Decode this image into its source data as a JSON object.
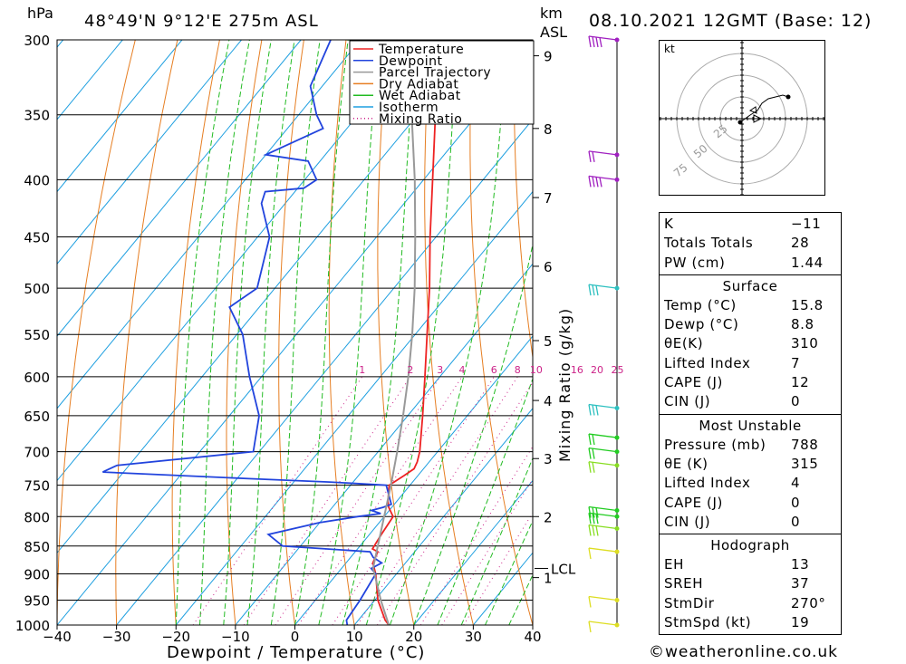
{
  "header": {
    "pressure_unit": "hPa",
    "location": "48°49'N  9°12'E  275m  ASL",
    "height_unit_line1": "km",
    "height_unit_line2": "ASL",
    "datetime": "08.10.2021  12GMT  (Base: 12)"
  },
  "chart_data": {
    "type": "line",
    "title": "48°49'N  9°12'E  275m  ASL",
    "xlabel": "Dewpoint / Temperature (°C)",
    "ylabel": "hPa",
    "right_axis_label": "Mixing Ratio (g/kg)",
    "xlim": [
      -40,
      40
    ],
    "ylim": [
      1000,
      300
    ],
    "x_ticks": [
      -40,
      -30,
      -20,
      -10,
      0,
      10,
      20,
      30,
      40
    ],
    "x_tick_labels": [
      "−40",
      "−30",
      "−20",
      "−10",
      "0",
      "10",
      "20",
      "30",
      "40"
    ],
    "pressure_levels": [
      300,
      350,
      400,
      450,
      500,
      550,
      600,
      650,
      700,
      750,
      800,
      850,
      900,
      950,
      1000
    ],
    "height_ticks": [
      {
        "km": 1,
        "p": 907
      },
      {
        "km": 2,
        "p": 800
      },
      {
        "km": 3,
        "p": 710
      },
      {
        "km": 4,
        "p": 630
      },
      {
        "km": 5,
        "p": 557
      },
      {
        "km": 6,
        "p": 478
      },
      {
        "km": 7,
        "p": 415
      },
      {
        "km": 8,
        "p": 360
      },
      {
        "km": 9,
        "p": 310
      }
    ],
    "lcl": {
      "label": "LCL",
      "p": 890
    },
    "mixing_ratio_labels": [
      "1",
      "2",
      "3",
      "4",
      "6",
      "8",
      "10",
      "16",
      "20",
      "25"
    ],
    "legend": [
      "Temperature",
      "Dewpoint",
      "Parcel Trajectory",
      "Dry Adiabat",
      "Wet Adiabat",
      "Isotherm",
      "Mixing Ratio"
    ],
    "legend_position": "top-right",
    "series": [
      {
        "name": "Temperature",
        "color": "#ee2222",
        "points": [
          [
            1000,
            15.8
          ],
          [
            990,
            14.5
          ],
          [
            950,
            10.5
          ],
          [
            900,
            6.5
          ],
          [
            880,
            4.5
          ],
          [
            860,
            3.8
          ],
          [
            855,
            2.5
          ],
          [
            830,
            2.0
          ],
          [
            800,
            1.5
          ],
          [
            785,
            -0.5
          ],
          [
            775,
            -1.5
          ],
          [
            750,
            -3.5
          ],
          [
            735,
            -2.3
          ],
          [
            725,
            -1.6
          ],
          [
            715,
            -2.0
          ],
          [
            700,
            -3.0
          ],
          [
            650,
            -7.5
          ],
          [
            600,
            -12.5
          ],
          [
            550,
            -18.0
          ],
          [
            500,
            -24.0
          ],
          [
            450,
            -31.0
          ],
          [
            400,
            -38.5
          ],
          [
            350,
            -47.0
          ],
          [
            300,
            -56.0
          ]
        ]
      },
      {
        "name": "Dewpoint",
        "color": "#2244dd",
        "points": [
          [
            1000,
            8.8
          ],
          [
            990,
            8.0
          ],
          [
            950,
            7.5
          ],
          [
            900,
            6.5
          ],
          [
            890,
            5.0
          ],
          [
            880,
            6.0
          ],
          [
            870,
            3.8
          ],
          [
            860,
            2.5
          ],
          [
            850,
            -13.0
          ],
          [
            830,
            -17.0
          ],
          [
            810,
            -10.0
          ],
          [
            800,
            -4.5
          ],
          [
            795,
            -1.0
          ],
          [
            790,
            -3.0
          ],
          [
            785,
            -1.5
          ],
          [
            780,
            -0.5
          ],
          [
            750,
            -4.0
          ],
          [
            745,
            -14.0
          ],
          [
            740,
            -28.0
          ],
          [
            730,
            -53.5
          ],
          [
            720,
            -52.0
          ],
          [
            700,
            -31.0
          ],
          [
            650,
            -35.0
          ],
          [
            600,
            -42.0
          ],
          [
            550,
            -49.0
          ],
          [
            520,
            -55.0
          ],
          [
            500,
            -53.0
          ],
          [
            450,
            -58.0
          ],
          [
            420,
            -64.0
          ],
          [
            410,
            -65.0
          ],
          [
            407,
            -59.0
          ],
          [
            400,
            -58.0
          ],
          [
            385,
            -62.0
          ],
          [
            380,
            -70.0
          ],
          [
            360,
            -64.0
          ],
          [
            350,
            -67.0
          ],
          [
            330,
            -72.0
          ],
          [
            300,
            -75.0
          ]
        ]
      },
      {
        "name": "Parcel Trajectory",
        "color": "#999999",
        "points": [
          [
            1000,
            15.8
          ],
          [
            950,
            11.0
          ],
          [
            900,
            6.3
          ],
          [
            890,
            5.3
          ],
          [
            850,
            3.0
          ],
          [
            800,
            0.0
          ],
          [
            750,
            -3.2
          ],
          [
            700,
            -6.8
          ],
          [
            650,
            -10.8
          ],
          [
            600,
            -15.3
          ],
          [
            550,
            -20.5
          ],
          [
            500,
            -26.5
          ],
          [
            450,
            -33.5
          ],
          [
            400,
            -41.5
          ],
          [
            350,
            -51.0
          ],
          [
            310,
            -60.0
          ]
        ]
      }
    ]
  },
  "hodograph": {
    "unit": "kt",
    "ring_labels": [
      "25",
      "50",
      "75"
    ]
  },
  "indices": {
    "general": [
      {
        "label": "K",
        "value": "−11"
      },
      {
        "label": "Totals Totals",
        "value": "28"
      },
      {
        "label": "PW (cm)",
        "value": "1.44"
      }
    ],
    "surface_title": "Surface",
    "surface": [
      {
        "label": "Temp (°C)",
        "value": "15.8"
      },
      {
        "label": "Dewp (°C)",
        "value": "8.8"
      },
      {
        "label": "θE(K)",
        "value": "310"
      },
      {
        "label": "Lifted Index",
        "value": "7"
      },
      {
        "label": "CAPE (J)",
        "value": "12"
      },
      {
        "label": "CIN (J)",
        "value": "0"
      }
    ],
    "mu_title": "Most Unstable",
    "mu": [
      {
        "label": "Pressure (mb)",
        "value": "788"
      },
      {
        "label": "θE (K)",
        "value": "315"
      },
      {
        "label": "Lifted Index",
        "value": "4"
      },
      {
        "label": "CAPE (J)",
        "value": "0"
      },
      {
        "label": "CIN (J)",
        "value": "0"
      }
    ],
    "hodo_title": "Hodograph",
    "hodo": [
      {
        "label": "EH",
        "value": "13"
      },
      {
        "label": "SREH",
        "value": "37"
      },
      {
        "label": "StmDir",
        "value": "270°"
      },
      {
        "label": "StmSpd (kt)",
        "value": "19"
      }
    ]
  },
  "credit": "©weatheronline.co.uk"
}
